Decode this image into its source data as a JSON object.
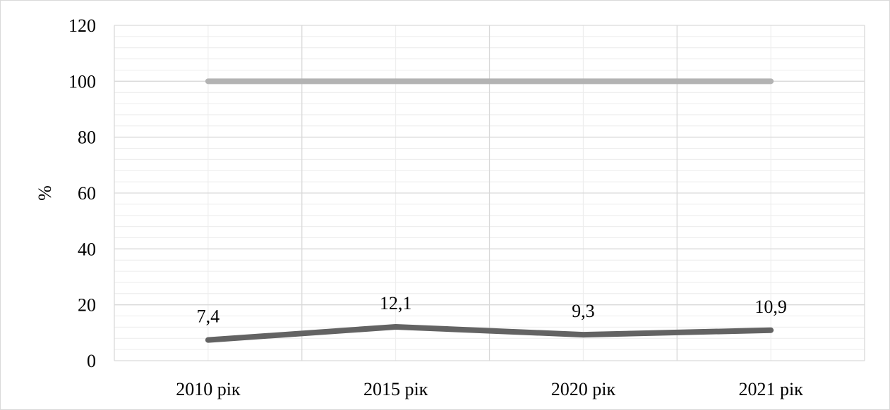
{
  "chart_data": {
    "type": "line",
    "title": "",
    "xlabel": "",
    "ylabel": "%",
    "categories": [
      "2010 рік",
      "2015 рік",
      "2020 рік",
      "2021 рік"
    ],
    "ylim": [
      0,
      120
    ],
    "y_major_step": 20,
    "y_minor_step": 4,
    "y_ticks": [
      "0",
      "20",
      "40",
      "60",
      "80",
      "100",
      "120"
    ],
    "grid": true,
    "legend": "none",
    "series": [
      {
        "values": [
          100,
          100,
          100,
          100
        ],
        "color": "#b3b3b3",
        "data_labels": []
      },
      {
        "values": [
          7.4,
          12.1,
          9.3,
          10.9
        ],
        "color": "#636363",
        "data_labels": [
          "7,4",
          "12,1",
          "9,3",
          "10,9"
        ]
      }
    ]
  }
}
